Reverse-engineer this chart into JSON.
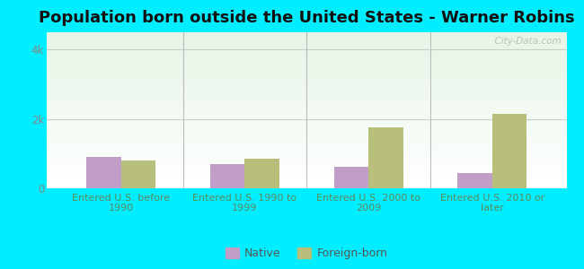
{
  "title": "Population born outside the United States - Warner Robins",
  "categories": [
    "Entered U.S. before\n1990",
    "Entered U.S. 1990 to\n1999",
    "Entered U.S. 2000 to\n2009",
    "Entered U.S. 2010 or\nlater"
  ],
  "native_values": [
    900,
    700,
    620,
    440
  ],
  "foreign_values": [
    800,
    850,
    1750,
    2150
  ],
  "native_color": "#c09ec8",
  "foreign_color": "#b8bf7a",
  "ylim": [
    0,
    4500
  ],
  "yticks": [
    0,
    2000,
    4000
  ],
  "ytick_labels": [
    "0",
    "2k",
    "4k"
  ],
  "outer_background": "#00eeff",
  "xlabel_color": "#5a8a5a",
  "watermark": "  City-Data.com",
  "bar_width": 0.28,
  "legend_native": "Native",
  "legend_foreign": "Foreign-born",
  "title_fontsize": 13,
  "label_fontsize": 8,
  "tick_fontsize": 8.5,
  "separator_color": "#bbbbbb",
  "grid_color": "#cccccc",
  "ytick_color": "#888888"
}
